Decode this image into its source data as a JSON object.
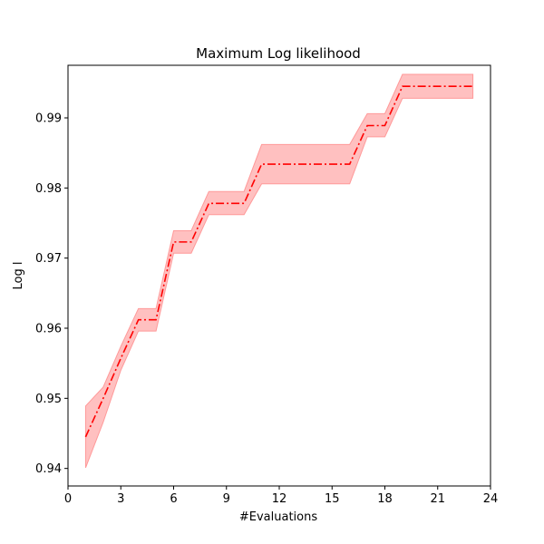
{
  "chart_data": {
    "type": "line",
    "title": "Maximum Log likelihood",
    "xlabel": "#Evaluations",
    "ylabel": "Log l",
    "xlim": [
      0,
      24
    ],
    "ylim": [
      0.9375,
      0.9975
    ],
    "x_ticks": [
      0,
      3,
      6,
      9,
      12,
      15,
      18,
      21,
      24
    ],
    "y_ticks": [
      0.94,
      0.95,
      0.96,
      0.97,
      0.98,
      0.99
    ],
    "y_tick_labels": [
      "0.94",
      "0.95",
      "0.96",
      "0.97",
      "0.98",
      "0.99"
    ],
    "grid": false,
    "legend": "none",
    "series": [
      {
        "line_color": "#ff0000",
        "band_color": "#ff9999",
        "line_style": "dash-dot",
        "x": [
          1,
          2,
          3,
          4,
          5,
          6,
          7,
          8,
          9,
          10,
          11,
          12,
          13,
          14,
          15,
          16,
          17,
          18,
          19,
          20,
          21,
          22,
          23
        ],
        "mean": [
          0.9445,
          0.95,
          0.9557,
          0.9612,
          0.9612,
          0.9723,
          0.9723,
          0.9778,
          0.9778,
          0.9778,
          0.9834,
          0.9834,
          0.9834,
          0.9834,
          0.9834,
          0.9834,
          0.9889,
          0.9889,
          0.9945,
          0.9945,
          0.9945,
          0.9945,
          0.9945
        ],
        "upper": [
          0.9489,
          0.9516,
          0.9574,
          0.9628,
          0.9628,
          0.9739,
          0.9739,
          0.9795,
          0.9795,
          0.9795,
          0.9862,
          0.9862,
          0.9862,
          0.9862,
          0.9862,
          0.9862,
          0.9906,
          0.9906,
          0.9962,
          0.9962,
          0.9962,
          0.9962,
          0.9962
        ],
        "lower": [
          0.9401,
          0.9466,
          0.954,
          0.9596,
          0.9596,
          0.9707,
          0.9707,
          0.9762,
          0.9762,
          0.9762,
          0.9806,
          0.9806,
          0.9806,
          0.9806,
          0.9806,
          0.9806,
          0.9873,
          0.9873,
          0.9928,
          0.9928,
          0.9928,
          0.9928,
          0.9928
        ]
      }
    ]
  }
}
